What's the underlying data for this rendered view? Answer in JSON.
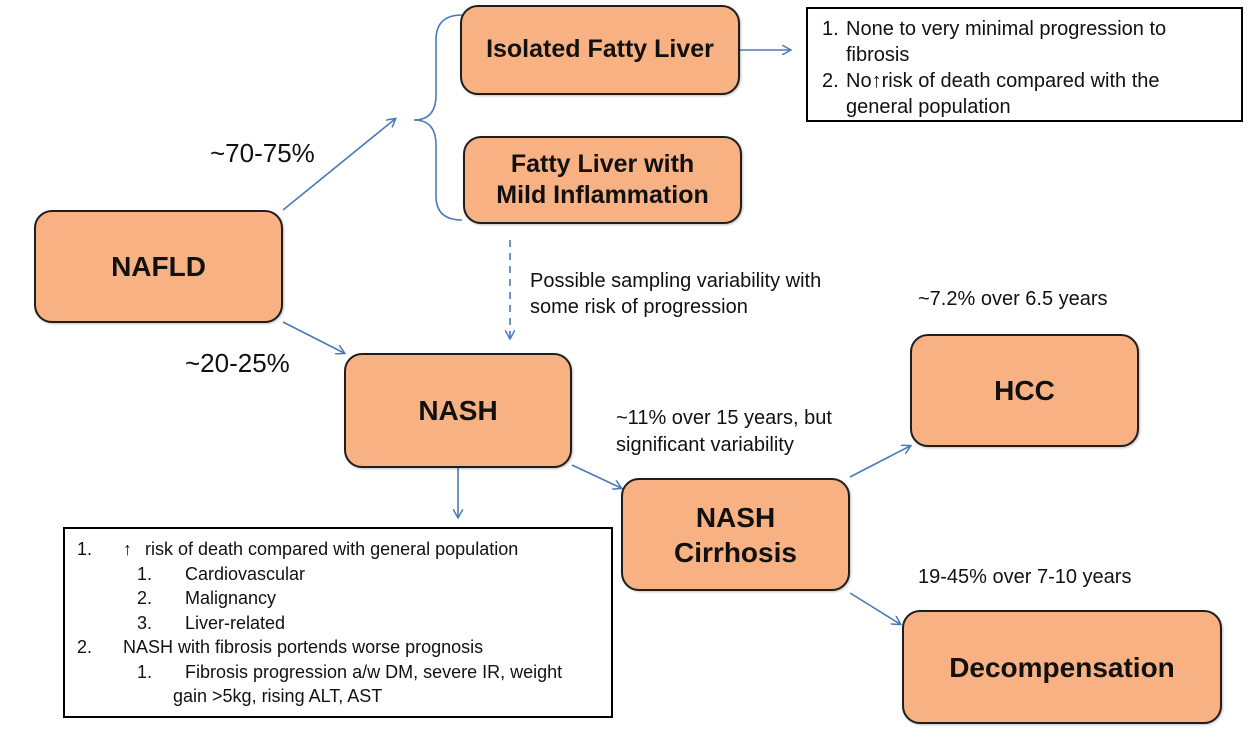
{
  "nodes": {
    "nafld": "NAFLD",
    "isolated": "Isolated Fatty Liver",
    "inflam_line1": "Fatty Liver with",
    "inflam_line2": "Mild Inflammation",
    "nash": "NASH",
    "cirrhosis_line1": "NASH",
    "cirrhosis_line2": "Cirrhosis",
    "hcc": "HCC",
    "decomp": "Decompensation"
  },
  "labels": {
    "pct_upper": "~70-75%",
    "pct_lower": "~20-25%",
    "sampling_line1": "Possible sampling variability with",
    "sampling_line2": "some risk of progression",
    "cirrhosis_rate_line1": "~11% over 15 years, but",
    "cirrhosis_rate_line2": "significant variability",
    "hcc_rate": "~7.2% over 6.5 years",
    "decomp_rate": "19-45% over 7-10 years"
  },
  "isolated_note": {
    "items": [
      {
        "num": "1.",
        "lines": [
          "None to very minimal progression to",
          "fibrosis"
        ]
      },
      {
        "num": "2.",
        "lines": [
          "No",
          "risk of death compared with the",
          "general population"
        ]
      }
    ]
  },
  "nash_note": {
    "item1": {
      "num": "1.",
      "text": "risk of death compared with general population"
    },
    "sub1": [
      {
        "num": "1.",
        "text": "Cardiovascular"
      },
      {
        "num": "2.",
        "text": "Malignancy"
      },
      {
        "num": "3.",
        "text": "Liver-related"
      }
    ],
    "item2": {
      "num": "2.",
      "text": "NASH with fibrosis portends worse prognosis"
    },
    "sub2": {
      "num": "1.",
      "line1": "Fibrosis progression a/w DM, severe IR, weight",
      "line2": "gain >5kg, rising ALT, AST"
    }
  },
  "colors": {
    "node_fill": "#f7b183",
    "arrow": "#4a7ab8",
    "border": "#1e1e1e"
  },
  "icons": {
    "up_arrow": "↑"
  }
}
